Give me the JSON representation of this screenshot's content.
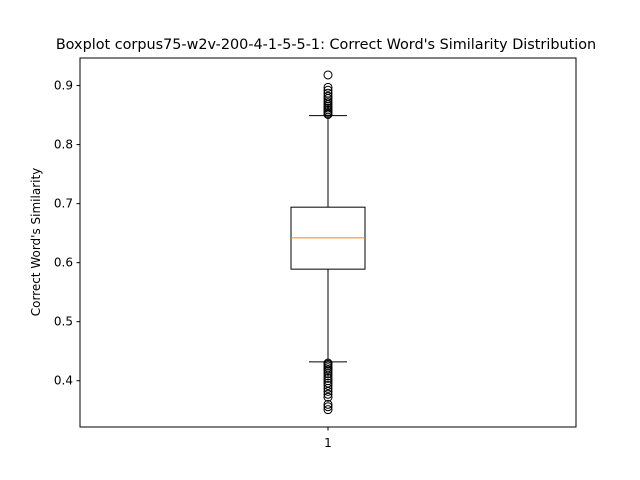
{
  "chart_data": {
    "type": "boxplot",
    "title": "Boxplot corpus75-w2v-200-4-1-5-5-1: Correct Word's Similarity Distribution",
    "xlabel": "",
    "ylabel": "Correct Word's Similarity",
    "categories": [
      "1"
    ],
    "ylim": [
      0.3216,
      0.9467
    ],
    "yticks": [
      0.4,
      0.5,
      0.6,
      0.7,
      0.8,
      0.9
    ],
    "ytick_labels": [
      "0.4",
      "0.5",
      "0.6",
      "0.7",
      "0.8",
      "0.9"
    ],
    "grid": false,
    "boxes": [
      {
        "category": "1",
        "whisker_low": 0.432,
        "q1": 0.589,
        "median": 0.642,
        "q3": 0.694,
        "whisker_high": 0.849,
        "outliers_high": [
          0.851,
          0.853,
          0.856,
          0.859,
          0.862,
          0.865,
          0.868,
          0.871,
          0.874,
          0.878,
          0.882,
          0.887,
          0.892,
          0.897,
          0.918
        ],
        "outliers_low": [
          0.43,
          0.428,
          0.425,
          0.422,
          0.419,
          0.416,
          0.412,
          0.408,
          0.404,
          0.4,
          0.396,
          0.392,
          0.387,
          0.382,
          0.377,
          0.372,
          0.36,
          0.356,
          0.351
        ]
      }
    ],
    "colors": {
      "box": "#000000",
      "median": "#ff7f0e",
      "whisker": "#000000",
      "flier": "#000000"
    }
  }
}
